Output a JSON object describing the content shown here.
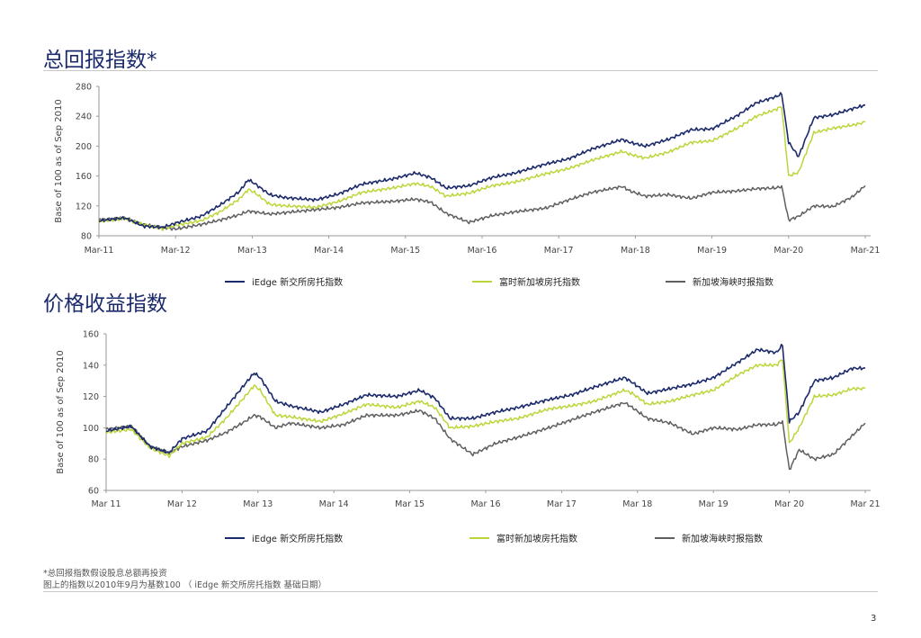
{
  "page_number": "3",
  "footnotes": [
    "*总回报指数假设股息总额再投资",
    "图上的指数以2010年9月为基数100 （ iEdge 新交所房托指数 基础日期）"
  ],
  "colors": {
    "series1": "#1b2a6b",
    "series2": "#bcd63a",
    "series3": "#5f5f5f",
    "axis": "#9a9a9a"
  },
  "chart_data": [
    {
      "type": "line",
      "title": "总回报指数*",
      "ylabel": "Base of 100 as of Sep 2010",
      "ylim": [
        80,
        280
      ],
      "yticks": [
        "80",
        "120",
        "160",
        "200",
        "240",
        "280"
      ],
      "categories": [
        "Mar-11",
        "Mar-12",
        "Mar-13",
        "Mar-14",
        "Mar-15",
        "Mar-16",
        "Mar-17",
        "Mar-18",
        "Mar-19",
        "Mar-20",
        "Mar-21"
      ],
      "x": [
        2011.17,
        2011.5,
        2011.75,
        2012.0,
        2012.17,
        2012.5,
        2012.75,
        2013.0,
        2013.12,
        2013.2,
        2013.4,
        2013.6,
        2014.0,
        2014.3,
        2014.6,
        2015.0,
        2015.3,
        2015.5,
        2015.7,
        2016.0,
        2016.3,
        2016.6,
        2017.0,
        2017.3,
        2017.6,
        2018.0,
        2018.1,
        2018.3,
        2018.6,
        2018.9,
        2019.17,
        2019.5,
        2019.75,
        2020.0,
        2020.08,
        2020.17,
        2020.3,
        2020.5,
        2020.75,
        2021.0,
        2021.17
      ],
      "series": [
        {
          "name": "iEdge 新交所房托指数",
          "values": [
            100,
            104,
            93,
            91,
            97,
            106,
            121,
            139,
            155,
            150,
            135,
            131,
            128,
            136,
            149,
            156,
            164,
            158,
            144,
            147,
            158,
            164,
            176,
            183,
            196,
            209,
            205,
            200,
            209,
            222,
            223,
            241,
            258,
            266,
            270,
            205,
            186,
            238,
            242,
            250,
            255
          ]
        },
        {
          "name": "富时新加坡房托指数",
          "values": [
            99,
            103,
            95,
            89,
            94,
            100,
            112,
            129,
            142,
            138,
            122,
            120,
            118,
            126,
            138,
            144,
            150,
            146,
            133,
            137,
            147,
            152,
            163,
            170,
            181,
            193,
            189,
            184,
            192,
            205,
            207,
            224,
            240,
            249,
            253,
            160,
            165,
            218,
            224,
            228,
            232
          ]
        },
        {
          "name": "新加坡海峡时报指数",
          "values": [
            101,
            104,
            95,
            91,
            89,
            95,
            101,
            108,
            113,
            112,
            109,
            111,
            115,
            118,
            124,
            126,
            129,
            125,
            110,
            98,
            107,
            112,
            117,
            128,
            138,
            146,
            140,
            133,
            135,
            130,
            138,
            140,
            143,
            144,
            146,
            101,
            106,
            120,
            119,
            132,
            147
          ]
        }
      ]
    },
    {
      "type": "line",
      "title": "价格收益指数",
      "ylabel": "Base of 100 as of Sep 2010",
      "ylim": [
        60,
        160
      ],
      "yticks": [
        "60",
        "80",
        "100",
        "120",
        "140",
        "160"
      ],
      "categories": [
        "Mar 11",
        "Mar 12",
        "Mar 13",
        "Mar 14",
        "Mar 15",
        "Mar 16",
        "Mar 17",
        "Mar 18",
        "Mar 19",
        "Mar 20",
        "Mar 21"
      ],
      "x": [
        2011.17,
        2011.5,
        2011.75,
        2012.0,
        2012.17,
        2012.5,
        2012.75,
        2013.0,
        2013.12,
        2013.2,
        2013.4,
        2013.6,
        2014.0,
        2014.3,
        2014.6,
        2015.0,
        2015.3,
        2015.5,
        2015.7,
        2016.0,
        2016.3,
        2016.6,
        2017.0,
        2017.3,
        2017.6,
        2018.0,
        2018.1,
        2018.3,
        2018.6,
        2018.9,
        2019.17,
        2019.5,
        2019.75,
        2020.0,
        2020.08,
        2020.17,
        2020.3,
        2020.5,
        2020.75,
        2021.0,
        2021.17
      ],
      "series": [
        {
          "name": "iEdge 新交所房托指数",
          "values": [
            98,
            101,
            88,
            84,
            93,
            98,
            113,
            128,
            135,
            132,
            117,
            114,
            110,
            115,
            121,
            120,
            124,
            119,
            106,
            106,
            110,
            113,
            118,
            121,
            126,
            132,
            129,
            122,
            125,
            128,
            132,
            142,
            150,
            148,
            153,
            104,
            110,
            130,
            132,
            138,
            138
          ]
        },
        {
          "name": "富时新加坡房托指数",
          "values": [
            97,
            99,
            87,
            82,
            90,
            94,
            106,
            120,
            127,
            124,
            108,
            107,
            104,
            109,
            115,
            113,
            117,
            113,
            100,
            101,
            104,
            106,
            112,
            114,
            117,
            124,
            122,
            115,
            117,
            121,
            124,
            134,
            140,
            140,
            144,
            90,
            100,
            120,
            121,
            125,
            125
          ]
        },
        {
          "name": "新加坡海峡时报指数",
          "values": [
            99,
            101,
            88,
            84,
            88,
            92,
            97,
            104,
            108,
            107,
            100,
            103,
            100,
            102,
            108,
            108,
            111,
            106,
            93,
            83,
            90,
            94,
            100,
            105,
            110,
            116,
            113,
            106,
            103,
            96,
            100,
            99,
            102,
            102,
            104,
            73,
            86,
            80,
            83,
            95,
            103
          ]
        }
      ]
    }
  ]
}
